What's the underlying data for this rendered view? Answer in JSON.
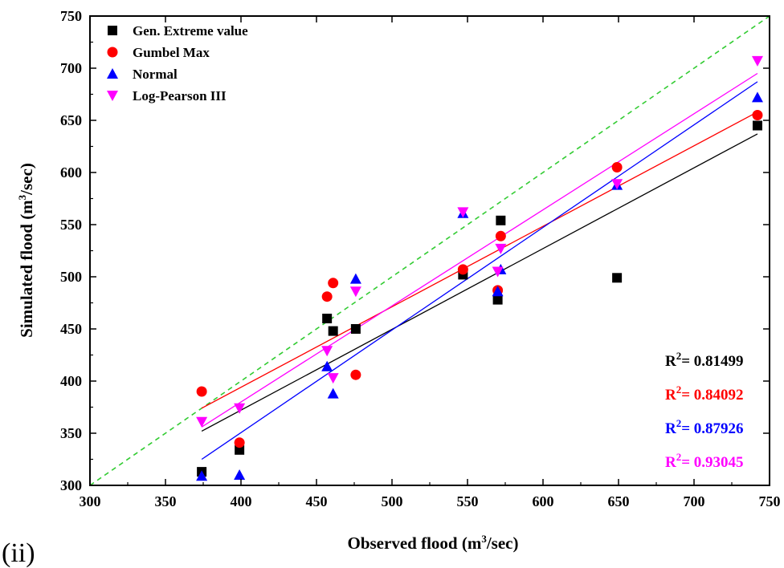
{
  "panel_label": "(ii)",
  "chart_data": {
    "type": "scatter",
    "xlabel": "Observed flood (m³/sec)",
    "ylabel": "Simulated flood (m³/sec)",
    "xlim": [
      300,
      750
    ],
    "ylim": [
      300,
      750
    ],
    "x_ticks": [
      300,
      350,
      400,
      450,
      500,
      550,
      600,
      650,
      700,
      750
    ],
    "y_ticks": [
      300,
      350,
      400,
      450,
      500,
      550,
      600,
      650,
      700,
      750
    ],
    "grid": false,
    "legend_position": "top-left",
    "reference_line": {
      "style": "dashed",
      "color": "#33cc33",
      "from": [
        300,
        300
      ],
      "to": [
        750,
        750
      ]
    },
    "series": [
      {
        "name": "Gen. Extreme value",
        "marker": "square",
        "color": "#000000",
        "points": [
          [
            374,
            313
          ],
          [
            399,
            334
          ],
          [
            457,
            460
          ],
          [
            461,
            448
          ],
          [
            476,
            450
          ],
          [
            547,
            502
          ],
          [
            570,
            478
          ],
          [
            572,
            554
          ],
          [
            649,
            499
          ],
          [
            742,
            645
          ]
        ],
        "fit": {
          "x": [
            374,
            742
          ],
          "y": [
            352,
            637
          ]
        },
        "r2_prefix": "R",
        "r2_sup": "2",
        "r2_value": "= 0.81499"
      },
      {
        "name": "Gumbel Max",
        "marker": "circle",
        "color": "#ff0000",
        "points": [
          [
            374,
            390
          ],
          [
            399,
            341
          ],
          [
            457,
            481
          ],
          [
            461,
            494
          ],
          [
            476,
            406
          ],
          [
            547,
            507
          ],
          [
            570,
            487
          ],
          [
            572,
            539
          ],
          [
            649,
            605
          ],
          [
            742,
            655
          ]
        ],
        "fit": {
          "x": [
            374,
            742
          ],
          "y": [
            374,
            658
          ]
        },
        "r2_prefix": "R",
        "r2_sup": "2",
        "r2_value": "= 0.84092"
      },
      {
        "name": "Normal",
        "marker": "triangle-up",
        "color": "#0000ff",
        "points": [
          [
            374,
            309
          ],
          [
            399,
            310
          ],
          [
            457,
            414
          ],
          [
            461,
            388
          ],
          [
            476,
            498
          ],
          [
            547,
            561
          ],
          [
            570,
            486
          ],
          [
            572,
            507
          ],
          [
            649,
            588
          ],
          [
            742,
            672
          ]
        ],
        "fit": {
          "x": [
            374,
            742
          ],
          "y": [
            325,
            687
          ]
        },
        "r2_prefix": "R",
        "r2_sup": "2",
        "r2_value": "= 0.87926"
      },
      {
        "name": "Log-Pearson III",
        "marker": "triangle-down",
        "color": "#ff00ff",
        "points": [
          [
            374,
            361
          ],
          [
            399,
            374
          ],
          [
            457,
            429
          ],
          [
            461,
            403
          ],
          [
            476,
            486
          ],
          [
            547,
            562
          ],
          [
            570,
            505
          ],
          [
            572,
            527
          ],
          [
            649,
            589
          ],
          [
            742,
            707
          ]
        ],
        "fit": {
          "x": [
            374,
            742
          ],
          "y": [
            356,
            695
          ]
        },
        "r2_prefix": "R",
        "r2_sup": "2",
        "r2_value": "= 0.93045"
      }
    ]
  }
}
